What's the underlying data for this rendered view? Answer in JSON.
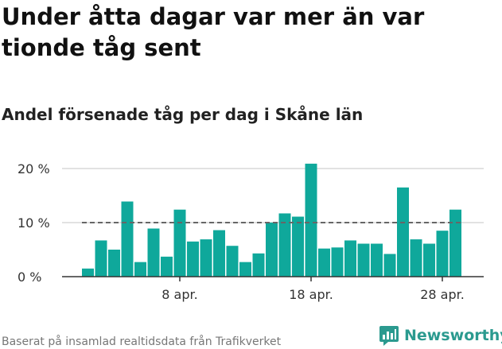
{
  "header": {
    "title": "Under åtta dagar var mer än var tionde tåg sent",
    "subtitle": "Andel försenade tåg per dag i Skåne län"
  },
  "footer": {
    "source": "Baserat på insamlad realtidsdata från Trafikverket",
    "brand": "Newsworthy"
  },
  "colors": {
    "bar": "#0fa89b",
    "reference_line": "#666666",
    "grid": "#d9d9d9",
    "brand": "#2b9a8f"
  },
  "chart_data": {
    "type": "bar",
    "title": "Andel försenade tåg per dag i Skåne län",
    "x": [
      "1 apr.",
      "2 apr.",
      "3 apr.",
      "4 apr.",
      "5 apr.",
      "6 apr.",
      "7 apr.",
      "8 apr.",
      "9 apr.",
      "10 apr.",
      "11 apr.",
      "12 apr.",
      "13 apr.",
      "14 apr.",
      "15 apr.",
      "16 apr.",
      "17 apr.",
      "18 apr.",
      "19 apr.",
      "20 apr.",
      "21 apr.",
      "22 apr.",
      "23 apr.",
      "24 apr.",
      "25 apr.",
      "26 apr.",
      "27 apr.",
      "28 apr.",
      "29 apr."
    ],
    "values": [
      1.5,
      6.7,
      5.0,
      13.9,
      2.7,
      8.9,
      3.7,
      12.4,
      6.5,
      6.9,
      8.6,
      5.7,
      2.7,
      4.3,
      10.0,
      11.7,
      11.1,
      20.9,
      5.2,
      5.4,
      6.7,
      6.1,
      6.1,
      4.2,
      16.5,
      6.9,
      6.1,
      8.5,
      12.4
    ],
    "reference_line": 10,
    "ylim": [
      0,
      20
    ],
    "yticks": [
      0,
      10,
      20
    ],
    "ytick_labels": [
      "0 %",
      "10 %",
      "20 %"
    ],
    "xticks": [
      "8 apr.",
      "18 apr.",
      "28 apr."
    ],
    "grid": true
  }
}
